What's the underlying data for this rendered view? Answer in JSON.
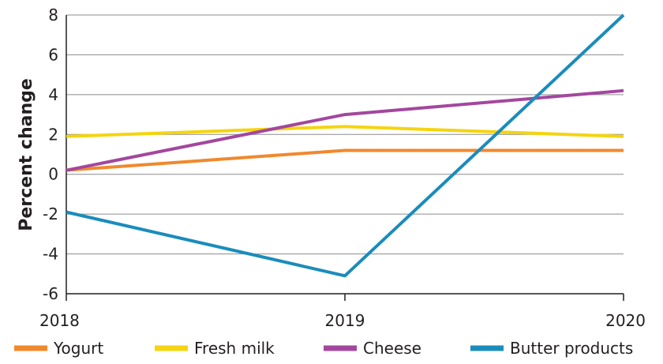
{
  "chart_data": {
    "type": "line",
    "title": "",
    "xlabel": "",
    "ylabel": "Percent change",
    "categories": [
      "2018",
      "2019",
      "2020"
    ],
    "ylim": [
      -6,
      8
    ],
    "yticks": [
      -6,
      -4,
      -2,
      0,
      2,
      4,
      6,
      8
    ],
    "grid": true,
    "legend_position": "bottom",
    "series": [
      {
        "name": "Yogurt",
        "color": "#f0892d",
        "values": [
          0.2,
          1.2,
          1.2
        ]
      },
      {
        "name": "Fresh milk",
        "color": "#f5d410",
        "values": [
          1.9,
          2.4,
          1.9
        ]
      },
      {
        "name": "Cheese",
        "color": "#a3479d",
        "values": [
          0.2,
          3.0,
          4.2
        ]
      },
      {
        "name": "Butter products",
        "color": "#1a8cbc",
        "values": [
          -1.9,
          -5.1,
          8.0
        ]
      }
    ]
  }
}
